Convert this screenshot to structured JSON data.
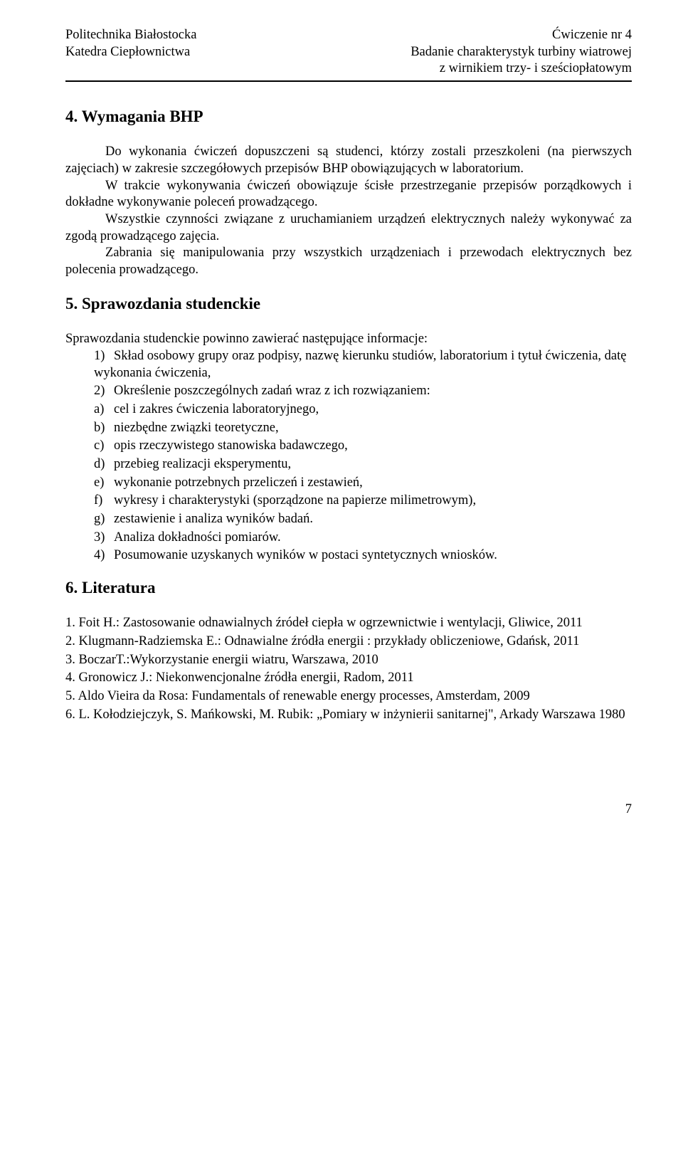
{
  "header": {
    "left_line1": "Politechnika Białostocka",
    "left_line2": "Katedra Ciepłownictwa",
    "right_line1": "Ćwiczenie nr 4",
    "right_line2": "Badanie charakterystyk turbiny wiatrowej",
    "right_line3": "z wirnikiem trzy- i sześciopłatowym"
  },
  "section4": {
    "title": "4. Wymagania BHP",
    "p1": "Do wykonania ćwiczeń dopuszczeni są studenci, którzy zostali przeszkoleni (na pierwszych zajęciach) w zakresie szczegółowych przepisów BHP obowiązujących w laboratorium.",
    "p2": "W trakcie wykonywania ćwiczeń obowiązuje ścisłe przestrzeganie przepisów porządkowych i dokładne wykonywanie poleceń prowadzącego.",
    "p3": "Wszystkie czynności związane z uruchamianiem urządzeń elektrycznych należy wykonywać za zgodą prowadzącego zajęcia.",
    "p4": "Zabrania się manipulowania przy wszystkich urządzeniach i przewodach elektrycznych bez polecenia prowadzącego."
  },
  "section5": {
    "title": "5. Sprawozdania studenckie",
    "intro": "Sprawozdania studenckie powinno zawierać następujące informacje:",
    "items": [
      {
        "marker": "1)",
        "text": "Skład osobowy grupy oraz podpisy, nazwę kierunku studiów, laboratorium i tytuł ćwiczenia, datę wykonania ćwiczenia,"
      },
      {
        "marker": "2)",
        "text": "Określenie poszczególnych zadań wraz z ich rozwiązaniem:"
      },
      {
        "marker": "a)",
        "text": "cel i zakres ćwiczenia laboratoryjnego,"
      },
      {
        "marker": "b)",
        "text": "niezbędne związki teoretyczne,"
      },
      {
        "marker": "c)",
        "text": "opis rzeczywistego stanowiska badawczego,"
      },
      {
        "marker": "d)",
        "text": "przebieg realizacji eksperymentu,"
      },
      {
        "marker": "e)",
        "text": "wykonanie potrzebnych przeliczeń i zestawień,"
      },
      {
        "marker": "f)",
        "text": "wykresy i charakterystyki (sporządzone na papierze milimetrowym),"
      },
      {
        "marker": "g)",
        "text": "zestawienie i analiza wyników badań."
      },
      {
        "marker": "3)",
        "text": "Analiza dokładności pomiarów."
      },
      {
        "marker": "4)",
        "text": "Posumowanie uzyskanych wyników w postaci syntetycznych wniosków."
      }
    ]
  },
  "section6": {
    "title": "6. Literatura",
    "items": [
      "1. Foit H.: Zastosowanie odnawialnych źródeł ciepła w ogrzewnictwie i wentylacji, Gliwice, 2011",
      "2. Klugmann-Radziemska E.: Odnawialne źródła energii : przykłady obliczeniowe, Gdańsk, 2011",
      "3. BoczarT.:Wykorzystanie energii wiatru, Warszawa, 2010",
      "4. Gronowicz J.: Niekonwencjonalne źródła energii, Radom, 2011",
      "5. Aldo Vieira da Rosa: Fundamentals of renewable energy processes, Amsterdam, 2009",
      "6. L. Kołodziejczyk, S. Mańkowski, M. Rubik: „Pomiary w inżynierii sanitarnej\", Arkady Warszawa 1980"
    ]
  },
  "page_number": "7"
}
